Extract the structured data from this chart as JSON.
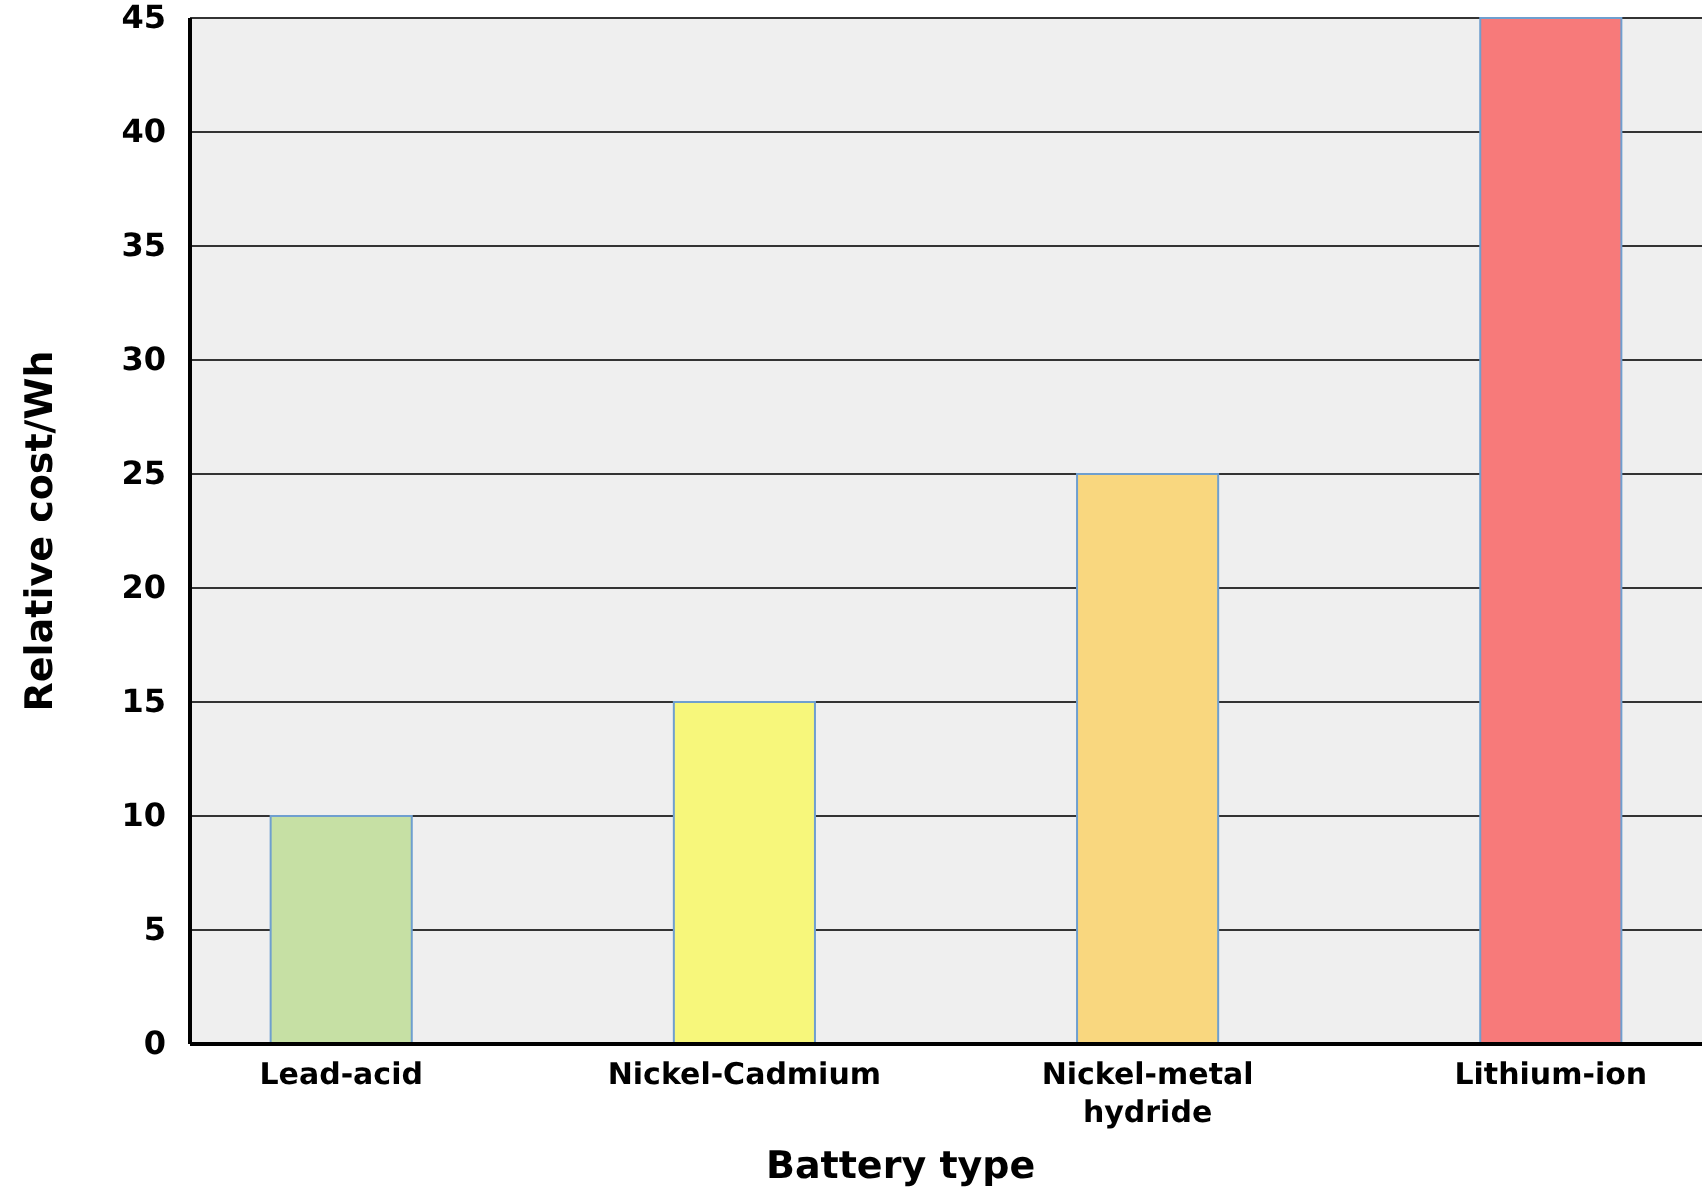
{
  "chart_data": {
    "type": "bar",
    "xlabel": "Battery type",
    "ylabel": "Relative cost/Wh",
    "categories": [
      "Lead-acid",
      "Nickel-Cadmium",
      "Nickel-metal hydride",
      "Lithium-ion"
    ],
    "values": [
      10,
      15,
      25,
      45
    ],
    "colors": [
      "#c6e0a4",
      "#f7f77b",
      "#f9d77f",
      "#f77a7a"
    ],
    "ylim": [
      0,
      45
    ],
    "yticks": [
      0,
      5,
      10,
      15,
      20,
      25,
      30,
      35,
      40,
      45
    ],
    "grid": "y"
  }
}
